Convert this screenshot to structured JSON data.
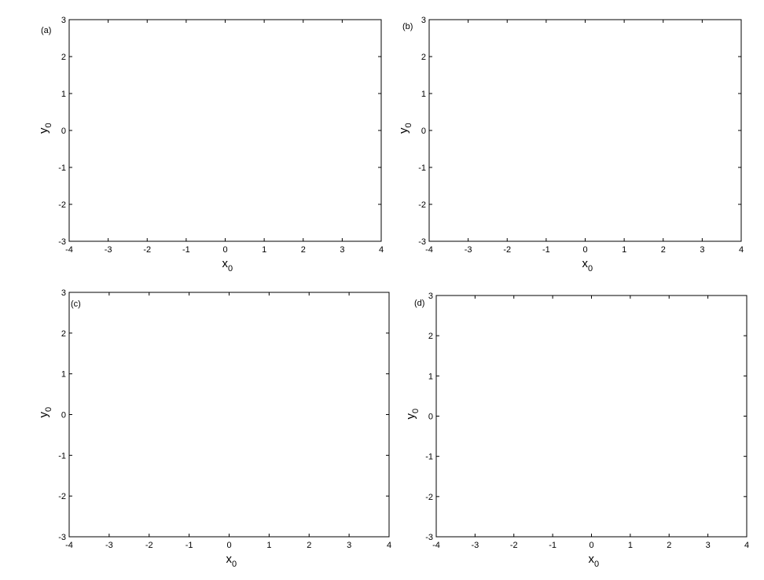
{
  "chart_data": [
    {
      "type": "basin",
      "label": "(a)",
      "color": "#ff0000",
      "xlabel": "x",
      "xlabel_subscript": "0",
      "ylabel": "y",
      "ylabel_subscript": "0",
      "xlim": [
        -4,
        4
      ],
      "ylim": [
        -3,
        3
      ],
      "xticks": [
        -4,
        -3,
        -2,
        -1,
        0,
        1,
        2,
        3,
        4
      ],
      "yticks": [
        -3,
        -2,
        -1,
        0,
        1,
        2,
        3
      ]
    },
    {
      "type": "basin",
      "label": "(b)",
      "color": "#ff0000",
      "xlabel": "x",
      "xlabel_subscript": "0",
      "ylabel": "y",
      "ylabel_subscript": "0",
      "xlim": [
        -4,
        4
      ],
      "ylim": [
        -3,
        3
      ],
      "xticks": [
        -4,
        -3,
        -2,
        -1,
        0,
        1,
        2,
        3,
        4
      ],
      "yticks": [
        -3,
        -2,
        -1,
        0,
        1,
        2,
        3
      ]
    },
    {
      "type": "basin",
      "label": "(c)",
      "color": "#ff0000",
      "xlabel": "x",
      "xlabel_subscript": "0",
      "ylabel": "y",
      "ylabel_subscript": "0",
      "xlim": [
        -4,
        4
      ],
      "ylim": [
        -3,
        3
      ],
      "xticks": [
        -4,
        -3,
        -2,
        -1,
        0,
        1,
        2,
        3,
        4
      ],
      "yticks": [
        -3,
        -2,
        -1,
        0,
        1,
        2,
        3
      ]
    },
    {
      "type": "basin",
      "label": "(d)",
      "color": "#ff0000",
      "xlabel": "x",
      "xlabel_subscript": "0",
      "ylabel": "y",
      "ylabel_subscript": "0",
      "xlim": [
        -4,
        4
      ],
      "ylim": [
        -3,
        3
      ],
      "xticks": [
        -4,
        -3,
        -2,
        -1,
        0,
        1,
        2,
        3,
        4
      ],
      "yticks": [
        -3,
        -2,
        -1,
        0,
        1,
        2,
        3
      ]
    }
  ]
}
